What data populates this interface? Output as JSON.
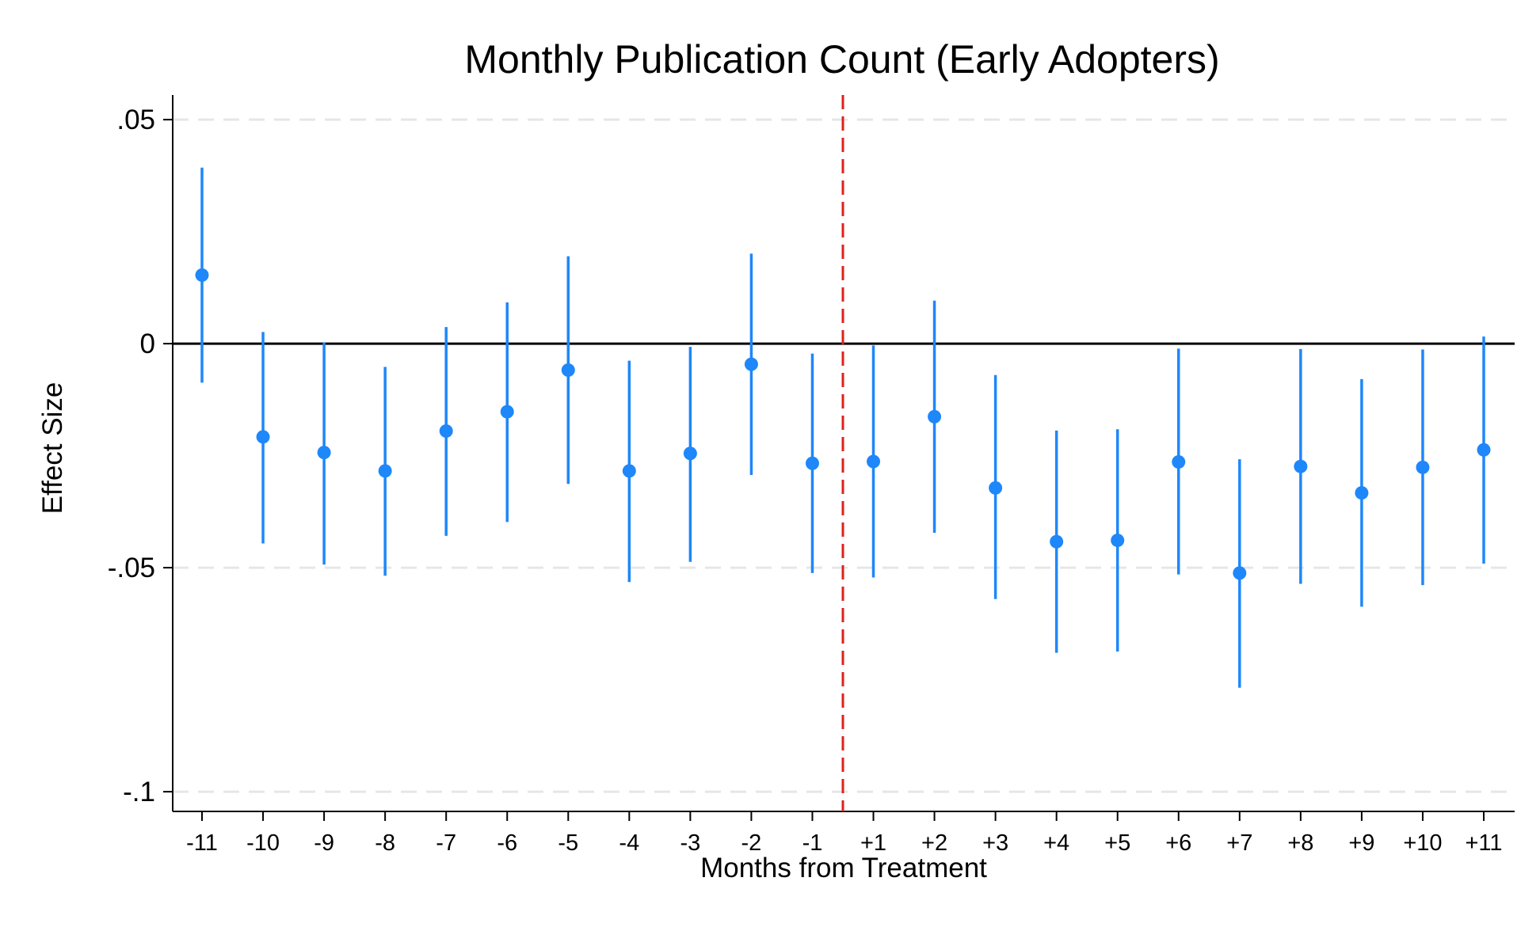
{
  "chart_data": {
    "type": "scatter",
    "title": "Monthly Publication Count (Early Adopters)",
    "xlabel": "Months from Treatment",
    "ylabel": "Effect Size",
    "categories": [
      "-11",
      "-10",
      "-9",
      "-8",
      "-7",
      "-6",
      "-5",
      "-4",
      "-3",
      "-2",
      "-1",
      "+1",
      "+2",
      "+3",
      "+4",
      "+5",
      "+6",
      "+7",
      "+8",
      "+9",
      "+10",
      "+11"
    ],
    "series": [
      {
        "estimates": [
          0.0153,
          -0.0208,
          -0.0243,
          -0.0284,
          -0.0195,
          -0.0152,
          -0.0059,
          -0.0284,
          -0.0245,
          -0.0046,
          -0.0267,
          -0.0263,
          -0.0163,
          -0.0322,
          -0.0442,
          -0.0439,
          -0.0264,
          -0.0512,
          -0.0274,
          -0.0333,
          -0.0276,
          -0.0237
        ],
        "ci_lower": [
          -0.0087,
          -0.0446,
          -0.0493,
          -0.0518,
          -0.0429,
          -0.0398,
          -0.0313,
          -0.0532,
          -0.0487,
          -0.0293,
          -0.0512,
          -0.0522,
          -0.0422,
          -0.057,
          -0.069,
          -0.0687,
          -0.0515,
          -0.0768,
          -0.0536,
          -0.0587,
          -0.0539,
          -0.0491
        ],
        "ci_upper": [
          0.0393,
          0.0026,
          0.0003,
          -0.0052,
          0.0037,
          0.0092,
          0.0195,
          -0.0038,
          -0.0007,
          0.0201,
          -0.0022,
          -0.0004,
          0.0096,
          -0.007,
          -0.0194,
          -0.0191,
          -0.0011,
          -0.0258,
          -0.0012,
          -0.0079,
          -0.0013,
          0.0016
        ]
      }
    ],
    "yticks": [
      0.05,
      0,
      -0.05,
      -0.1
    ],
    "ytick_labels": [
      ".05",
      "0",
      "-.05",
      "-.1"
    ],
    "ylim": [
      -0.1044,
      0.0555
    ],
    "reference_line_y": 0,
    "treatment_line": "between -1 and +1",
    "grid": "horizontal dashed",
    "colors": {
      "marker": "#1e87fa",
      "treatment_line": "#e0201b",
      "zero_line": "#000000",
      "grid": "#e6e6e6",
      "axis": "#000000"
    }
  }
}
